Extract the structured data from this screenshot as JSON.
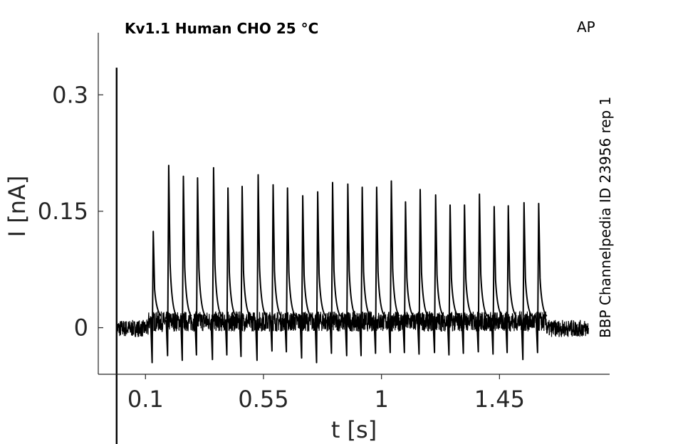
{
  "chart_data": {
    "type": "line",
    "title": "Kv1.1  Human  CHO  25 °C",
    "protocol_label": "AP",
    "side_label": "BBP Channelpedia ID 23956 rep 1",
    "xlabel": "t [s]",
    "ylabel": "I [nA]",
    "xlim": [
      -0.08,
      1.87
    ],
    "ylim": [
      -0.06,
      0.38
    ],
    "xticks": [
      0.1,
      0.55,
      1,
      1.45
    ],
    "xtick_labels": [
      "0.1",
      "0.55",
      "1",
      "1.45"
    ],
    "yticks": [
      0,
      0.15,
      0.3
    ],
    "ytick_labels": [
      "0",
      "0.15",
      "0.3"
    ],
    "grid": false,
    "trace_range": [
      -0.01,
      1.79
    ],
    "baseline": 0.0,
    "stimulus_artifact": {
      "t": -0.01,
      "peak": 0.335
    },
    "spikes": [
      {
        "t": 0.128,
        "peak": 0.124,
        "trough": -0.045
      },
      {
        "t": 0.187,
        "peak": 0.209,
        "trough": -0.036
      },
      {
        "t": 0.243,
        "peak": 0.195,
        "trough": -0.042
      },
      {
        "t": 0.297,
        "peak": 0.193,
        "trough": -0.035
      },
      {
        "t": 0.358,
        "peak": 0.206,
        "trough": -0.041
      },
      {
        "t": 0.413,
        "peak": 0.18,
        "trough": -0.035
      },
      {
        "t": 0.467,
        "peak": 0.182,
        "trough": -0.037
      },
      {
        "t": 0.528,
        "peak": 0.197,
        "trough": -0.042
      },
      {
        "t": 0.585,
        "peak": 0.184,
        "trough": -0.03
      },
      {
        "t": 0.64,
        "peak": 0.18,
        "trough": -0.031
      },
      {
        "t": 0.698,
        "peak": 0.17,
        "trough": -0.039
      },
      {
        "t": 0.755,
        "peak": 0.175,
        "trough": -0.045
      },
      {
        "t": 0.812,
        "peak": 0.187,
        "trough": -0.033
      },
      {
        "t": 0.87,
        "peak": 0.185,
        "trough": -0.036
      },
      {
        "t": 0.925,
        "peak": 0.181,
        "trough": -0.036
      },
      {
        "t": 0.98,
        "peak": 0.181,
        "trough": -0.033
      },
      {
        "t": 1.036,
        "peak": 0.189,
        "trough": -0.032
      },
      {
        "t": 1.09,
        "peak": 0.162,
        "trough": -0.032
      },
      {
        "t": 1.146,
        "peak": 0.178,
        "trough": -0.034
      },
      {
        "t": 1.205,
        "peak": 0.171,
        "trough": -0.032
      },
      {
        "t": 1.26,
        "peak": 0.158,
        "trough": -0.035
      },
      {
        "t": 1.315,
        "peak": 0.158,
        "trough": -0.033
      },
      {
        "t": 1.372,
        "peak": 0.172,
        "trough": -0.031
      },
      {
        "t": 1.428,
        "peak": 0.156,
        "trough": -0.034
      },
      {
        "t": 1.482,
        "peak": 0.157,
        "trough": -0.032
      },
      {
        "t": 1.542,
        "peak": 0.161,
        "trough": -0.041
      },
      {
        "t": 1.598,
        "peak": 0.16,
        "trough": -0.032
      }
    ]
  }
}
